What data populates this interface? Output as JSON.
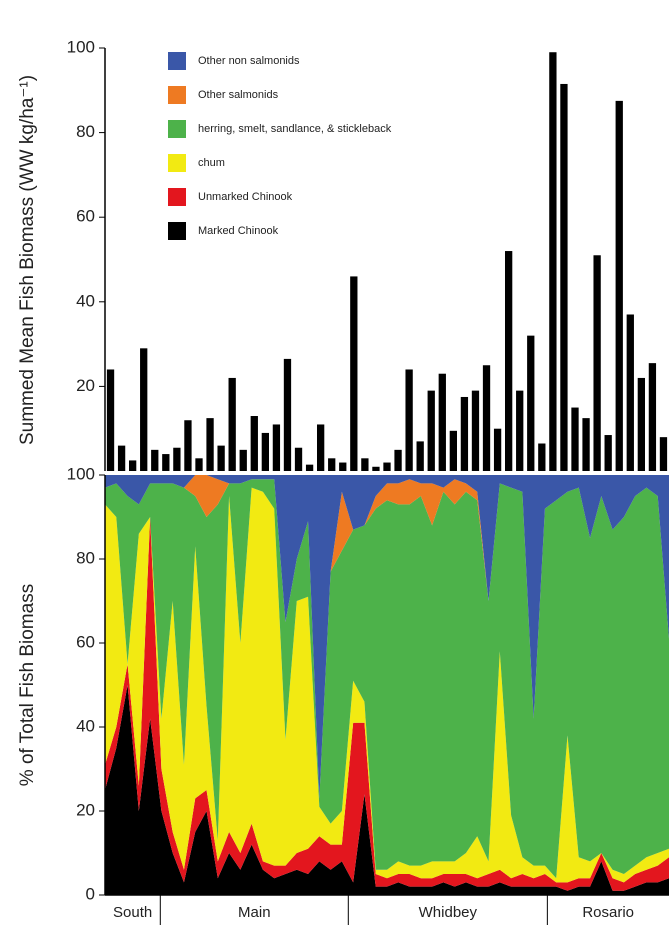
{
  "chart_data": [
    {
      "type": "bar",
      "ylabel": "Summed Mean Fish Biomass (WW kg/ha⁻¹)",
      "color": "#000000",
      "values": [
        24,
        6,
        2.5,
        29,
        5,
        4,
        5.5,
        12,
        3,
        12.5,
        6,
        22,
        5,
        13,
        9,
        11,
        26.5,
        5.5,
        1.5,
        11,
        3,
        2,
        46,
        3,
        1,
        2,
        5,
        24,
        7,
        19,
        23,
        9.5,
        17.5,
        19,
        25,
        10,
        52,
        19,
        32,
        6.5,
        99,
        91.5,
        15,
        12.5,
        51,
        8.5,
        87.5,
        37,
        22,
        25.5,
        8
      ],
      "ylim": [
        0,
        100
      ],
      "yticks": [
        20,
        40,
        60,
        80,
        100
      ]
    },
    {
      "type": "stacked-area",
      "ylabel": "% of Total Fish Biomass",
      "legend": "upper left",
      "groups": [
        {
          "label": "South",
          "count": 5
        },
        {
          "label": "Main",
          "count": 17
        },
        {
          "label": "Whidbey",
          "count": 18
        },
        {
          "label": "Rosario",
          "count": 11
        }
      ],
      "ylim": [
        0,
        100
      ],
      "yticks": [
        0,
        20,
        40,
        60,
        80,
        100
      ],
      "series": [
        {
          "name": "Marked Chinook",
          "color": "#000000",
          "values": [
            25,
            35,
            50,
            20,
            42,
            20,
            10,
            3,
            15,
            20,
            4,
            10,
            6,
            12,
            6,
            4,
            5,
            6,
            5,
            8,
            6,
            8,
            3,
            24,
            2,
            2,
            3,
            2,
            2,
            2,
            3,
            2,
            3,
            2,
            2,
            3,
            2,
            2,
            2,
            2,
            2,
            1,
            2,
            2,
            8,
            1,
            1,
            2,
            3,
            3,
            4
          ]
        },
        {
          "name": "Unmarked Chinook",
          "color": "#e3161e",
          "values": [
            6,
            5,
            5,
            6,
            48,
            10,
            5,
            3,
            8,
            5,
            4,
            5,
            4,
            5,
            2,
            3,
            2,
            4,
            6,
            6,
            6,
            4,
            38,
            17,
            3,
            2,
            2,
            3,
            2,
            2,
            2,
            3,
            2,
            2,
            3,
            3,
            2,
            3,
            2,
            3,
            1,
            2,
            2,
            2,
            2,
            3,
            2,
            3,
            3,
            4,
            5
          ]
        },
        {
          "name": "chum",
          "color": "#f2ea12",
          "values": [
            62,
            50,
            0,
            60,
            0,
            12,
            55,
            25,
            60,
            20,
            5,
            80,
            50,
            80,
            88,
            85,
            30,
            60,
            60,
            7,
            5,
            8,
            10,
            5,
            1,
            2,
            3,
            2,
            3,
            4,
            3,
            3,
            5,
            10,
            3,
            52,
            15,
            4,
            3,
            2,
            1,
            35,
            5,
            4,
            0,
            2,
            2,
            2,
            3,
            3,
            2
          ]
        },
        {
          "name": "herring, smelt, sandlance, & stickleback",
          "color": "#4db24a",
          "values": [
            4,
            8,
            40,
            7,
            8,
            56,
            28,
            66,
            12,
            45,
            80,
            3,
            38,
            2,
            3,
            7,
            28,
            10,
            18,
            2,
            60,
            62,
            36,
            42,
            86,
            88,
            85,
            86,
            88,
            80,
            88,
            85,
            86,
            80,
            62,
            40,
            78,
            87,
            35,
            85,
            90,
            58,
            88,
            77,
            85,
            81,
            85,
            88,
            88,
            85,
            50
          ]
        },
        {
          "name": "Other salmonids",
          "color": "#ee7a22",
          "values": [
            0,
            0,
            0,
            0,
            0,
            0,
            0,
            0,
            5,
            10,
            6,
            0,
            0,
            0,
            0,
            0,
            0,
            0,
            0,
            0,
            0,
            14,
            0,
            0,
            3,
            4,
            5,
            6,
            3,
            10,
            1,
            6,
            2,
            2,
            0,
            0,
            0,
            0,
            0,
            0,
            0,
            0,
            0,
            0,
            0,
            0,
            0,
            0,
            0,
            0,
            0
          ]
        },
        {
          "name": "Other non salmonids",
          "color": "#3a57a8",
          "values": [
            3,
            2,
            5,
            7,
            2,
            2,
            2,
            3,
            0,
            0,
            1,
            2,
            2,
            1,
            1,
            1,
            35,
            20,
            11,
            77,
            23,
            4,
            13,
            12,
            5,
            2,
            2,
            1,
            2,
            2,
            3,
            1,
            2,
            4,
            30,
            2,
            3,
            4,
            58,
            8,
            6,
            4,
            3,
            15,
            5,
            13,
            10,
            5,
            3,
            5,
            39
          ]
        }
      ]
    }
  ]
}
